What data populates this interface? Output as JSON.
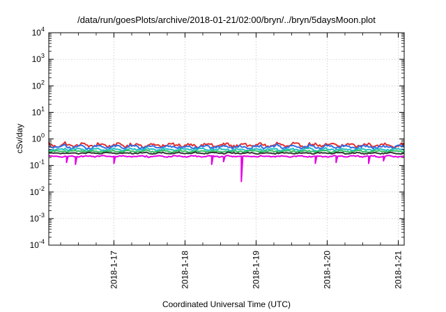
{
  "chart_data": {
    "type": "line",
    "title": "/data/run/goesPlots/archive/2018-01-21/02:00/bryn/../bryn/5daysMoon.plot",
    "xlabel": "Coordinated Universal Time (UTC)",
    "ylabel": "cSv/day",
    "yscale": "log",
    "ylim": [
      0.0001,
      10000
    ],
    "xlim": [
      "2018-01-16 02:00",
      "2018-01-21 02:00"
    ],
    "grid": true,
    "legend": "none",
    "x_tick_labels": [
      "2018-1-17",
      "2018-1-18",
      "2018-1-19",
      "2018-1-20",
      "2018-1-21"
    ],
    "y_ticks": [
      {
        "value": 0.0001,
        "base": "10",
        "exp": "-4"
      },
      {
        "value": 0.001,
        "base": "10",
        "exp": "-3"
      },
      {
        "value": 0.01,
        "base": "10",
        "exp": "-2"
      },
      {
        "value": 0.1,
        "base": "10",
        "exp": "-1"
      },
      {
        "value": 1,
        "base": "10",
        "exp": "0"
      },
      {
        "value": 10,
        "base": "10",
        "exp": "1"
      },
      {
        "value": 100,
        "base": "10",
        "exp": "2"
      },
      {
        "value": 1000,
        "base": "10",
        "exp": "3"
      },
      {
        "value": 10000,
        "base": "10",
        "exp": "4"
      }
    ],
    "series": [
      {
        "color": "#e03030",
        "base_value": 0.58,
        "variation": 0.14,
        "dips": []
      },
      {
        "color": "#2f6ee8",
        "base_value": 0.5,
        "variation": 0.12,
        "dips": []
      },
      {
        "color": "#22c0c0",
        "base_value": 0.4,
        "variation": 0.08,
        "dips": []
      },
      {
        "color": "#30c060",
        "base_value": 0.34,
        "variation": 0.06,
        "dips": []
      },
      {
        "color": "#333333",
        "base_value": 0.29,
        "variation": 0.05,
        "dips": []
      },
      {
        "color": "#e600e6",
        "base_value": 0.22,
        "variation": 0.05,
        "dips": [
          {
            "x": "2018-01-16 08:00",
            "value": 0.13
          },
          {
            "x": "2018-01-16 11:00",
            "value": 0.11
          },
          {
            "x": "2018-01-17 00:00",
            "value": 0.12
          },
          {
            "x": "2018-01-18 09:00",
            "value": 0.11
          },
          {
            "x": "2018-01-18 13:00",
            "value": 0.14
          },
          {
            "x": "2018-01-18 19:00",
            "value": 0.025
          },
          {
            "x": "2018-01-19 20:00",
            "value": 0.12
          },
          {
            "x": "2018-01-20 03:00",
            "value": 0.13
          },
          {
            "x": "2018-01-20 14:00",
            "value": 0.12
          },
          {
            "x": "2018-01-20 19:00",
            "value": 0.15
          }
        ]
      }
    ]
  }
}
